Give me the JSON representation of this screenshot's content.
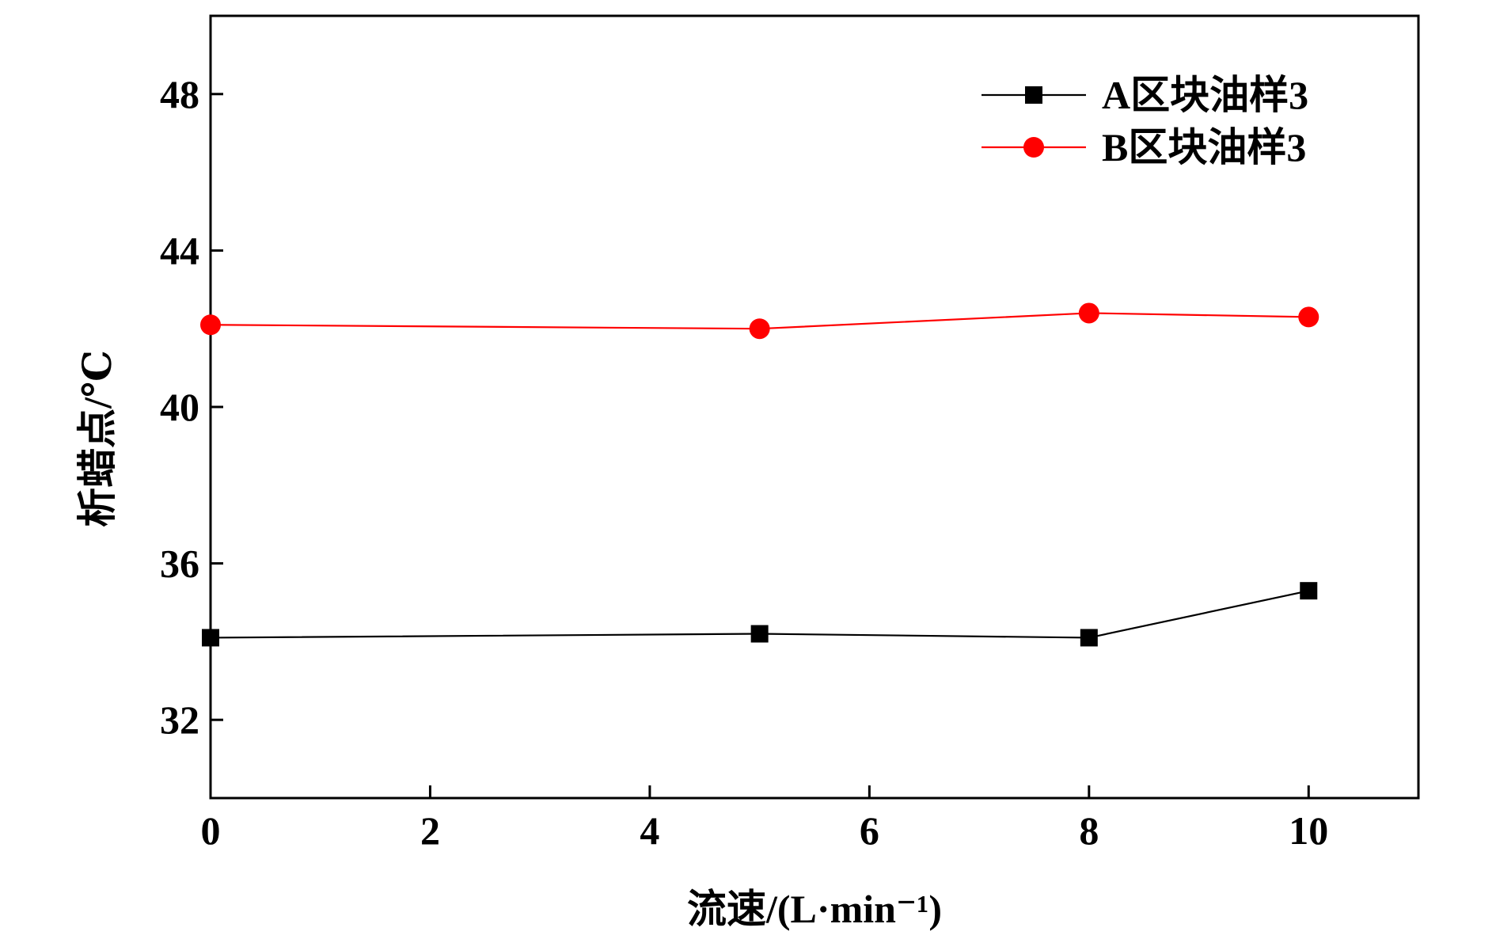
{
  "chart_data": {
    "type": "line",
    "title": "",
    "xlabel": "流速/(L·min⁻¹)",
    "ylabel": "析蜡点/℃",
    "xlim": [
      0,
      11
    ],
    "ylim": [
      30,
      50
    ],
    "xticks": [
      0,
      2,
      4,
      6,
      8,
      10
    ],
    "yticks": [
      32,
      36,
      40,
      44,
      48
    ],
    "xtick_labels": [
      "0",
      "2",
      "4",
      "6",
      "8",
      "10"
    ],
    "ytick_labels": [
      "32",
      "36",
      "40",
      "44",
      "48"
    ],
    "grid": false,
    "legend_position": "top-right",
    "series": [
      {
        "name": "A区块油样3",
        "color": "#000000",
        "marker": "square",
        "x": [
          0,
          5,
          8,
          10
        ],
        "y": [
          34.1,
          34.2,
          34.1,
          35.3
        ]
      },
      {
        "name": "B区块油样3",
        "color": "#ff0000",
        "marker": "circle",
        "x": [
          0,
          5,
          8,
          10
        ],
        "y": [
          42.1,
          42.0,
          42.4,
          42.3
        ]
      }
    ]
  }
}
